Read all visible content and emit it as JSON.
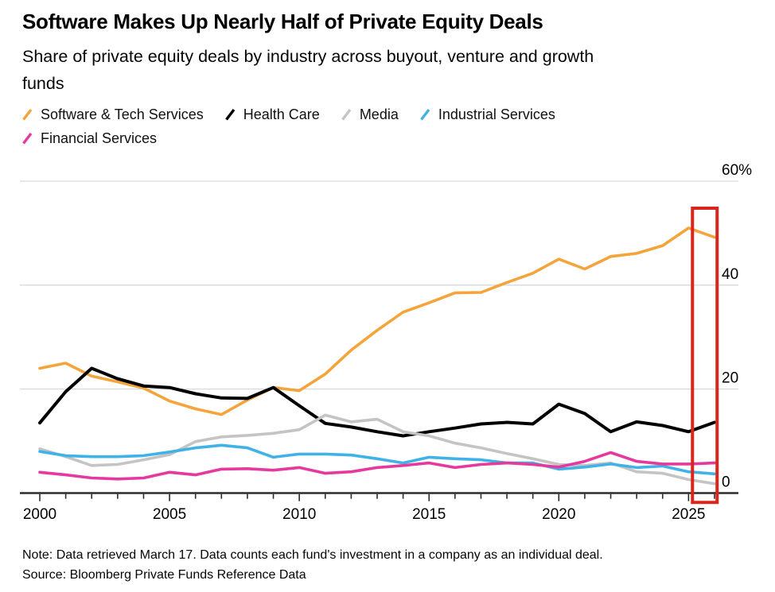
{
  "header": {
    "title": "Software Makes Up Nearly Half of Private Equity Deals",
    "subtitle": "Share of private equity deals by industry across buyout, venture and growth funds"
  },
  "legend": {
    "marker": "slash-icon",
    "items": [
      {
        "label": "Software & Tech Services",
        "color": "#F3A43B"
      },
      {
        "label": "Health Care",
        "color": "#000000"
      },
      {
        "label": "Media",
        "color": "#C4C4C4"
      },
      {
        "label": "Industrial Services",
        "color": "#41B2E8"
      },
      {
        "label": "Financial Services",
        "color": "#E5399E"
      }
    ]
  },
  "chart_data": {
    "type": "line",
    "title": "Software Makes Up Nearly Half of Private Equity Deals",
    "subtitle": "Share of private equity deals by industry across buyout, venture and growth funds",
    "unit": "%",
    "x": [
      2000,
      2001,
      2002,
      2003,
      2004,
      2005,
      2006,
      2007,
      2008,
      2009,
      2010,
      2011,
      2012,
      2013,
      2014,
      2015,
      2016,
      2017,
      2018,
      2019,
      2020,
      2021,
      2022,
      2023,
      2024,
      2025,
      2026
    ],
    "series": [
      {
        "name": "Software & Tech Services",
        "color": "#F3A43B",
        "width": 3.6,
        "values": [
          24,
          25,
          22.5,
          21.4,
          20.2,
          17.7,
          16.2,
          15.1,
          17.9,
          20.3,
          19.7,
          22.9,
          27.5,
          31.3,
          34.8,
          36.6,
          38.5,
          38.6,
          40.5,
          42.3,
          45,
          43.1,
          45.5,
          46.1,
          47.6,
          51,
          49.2
        ]
      },
      {
        "name": "Health Care",
        "color": "#000000",
        "width": 4,
        "values": [
          13.5,
          19.5,
          24,
          22,
          20.6,
          20.3,
          19.1,
          18.3,
          18.2,
          20.3,
          16.8,
          13.4,
          12.7,
          11.8,
          11,
          11.8,
          12.5,
          13.3,
          13.6,
          13.3,
          17.1,
          15.3,
          11.8,
          13.7,
          13,
          11.8,
          13.6
        ]
      },
      {
        "name": "Media",
        "color": "#C4C4C4",
        "width": 3.6,
        "values": [
          8.5,
          7,
          5.3,
          5.5,
          6.4,
          7.4,
          9.9,
          10.8,
          11.1,
          11.5,
          12.2,
          15,
          13.7,
          14.2,
          11.8,
          11,
          9.6,
          8.7,
          7.6,
          6.6,
          5.5,
          5.3,
          5.8,
          4.1,
          3.8,
          2.6,
          1.8
        ]
      },
      {
        "name": "Industrial Services",
        "color": "#41B2E8",
        "width": 3.6,
        "values": [
          8,
          7.2,
          7,
          7,
          7.2,
          7.9,
          8.7,
          9.2,
          8.7,
          6.9,
          7.5,
          7.5,
          7.3,
          6.6,
          5.8,
          6.9,
          6.6,
          6.4,
          5.8,
          5.8,
          4.6,
          5,
          5.6,
          4.9,
          5.2,
          4.1,
          3.7
        ]
      },
      {
        "name": "Financial Services",
        "color": "#E5399E",
        "width": 3.6,
        "values": [
          4,
          3.5,
          2.9,
          2.7,
          2.9,
          4,
          3.5,
          4.6,
          4.7,
          4.4,
          4.9,
          3.8,
          4.1,
          4.9,
          5.3,
          5.8,
          4.9,
          5.5,
          5.8,
          5.5,
          5,
          6.1,
          7.8,
          6.1,
          5.6,
          5.6,
          5.8
        ]
      }
    ],
    "xlim": [
      2000,
      2026
    ],
    "ylim": [
      0,
      60
    ],
    "yticks": [
      0,
      20,
      40,
      60
    ],
    "ytick_labels": [
      "0",
      "20",
      "40",
      "60%"
    ],
    "xticks_labeled": [
      2000,
      2005,
      2010,
      2015,
      2020,
      2025
    ],
    "xtick_labels": [
      "2000",
      "2005",
      "2010",
      "2015",
      "2020",
      "2025"
    ],
    "grid": "horizontal",
    "legend_position": "top",
    "annotation_box": {
      "description": "red rectangle highlighting the most recent data points",
      "color": "#D8261C",
      "year_start": 2025.15,
      "year_end": 2026.1,
      "value_top": 54.8,
      "value_bottom": -1.8
    }
  },
  "footer": {
    "note": "Note: Data retrieved March 17. Data counts each fund's investment in a company as an individual deal.",
    "source": "Source: Bloomberg Private Funds Reference Data"
  }
}
